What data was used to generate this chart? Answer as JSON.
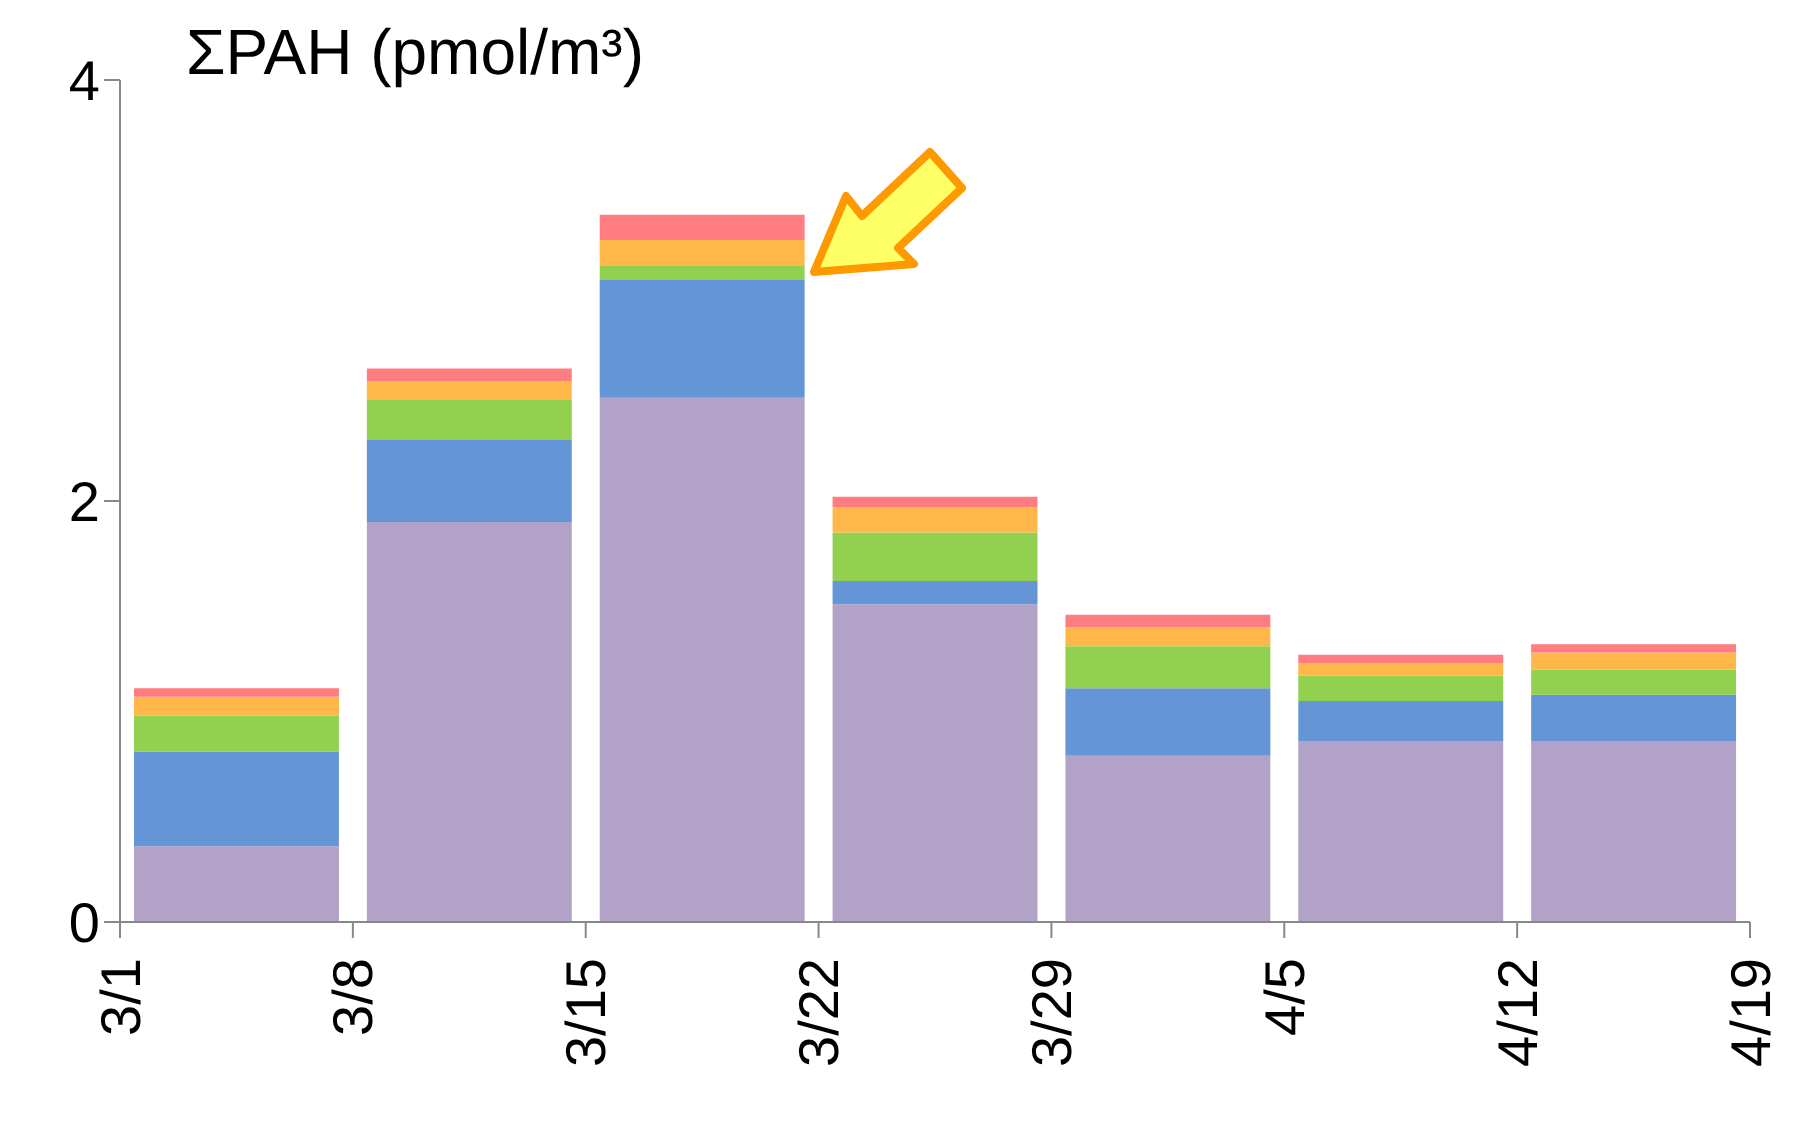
{
  "chart_data": {
    "type": "bar",
    "title": "ΣPAH (pmol/m³)",
    "stacked": true,
    "x": [
      "--03-04T12:00",
      "--03-11T12:00",
      "--03-18T12:00",
      "--03-25T12:00",
      "--04-01T12:00",
      "--04-08T12:00",
      "--04-15T12:00"
    ],
    "xlim": [
      "--03-01",
      "--04-19"
    ],
    "xticks": [
      {
        "value": "--03-01",
        "label": "3/1"
      },
      {
        "value": "--03-08",
        "label": "3/8"
      },
      {
        "value": "--03-15",
        "label": "3/15"
      },
      {
        "value": "--03-22",
        "label": "3/22"
      },
      {
        "value": "--03-29",
        "label": "3/29"
      },
      {
        "value": "--04-05",
        "label": "4/5"
      },
      {
        "value": "--04-12",
        "label": "4/12"
      },
      {
        "value": "--04-19",
        "label": "4/19"
      }
    ],
    "ylim": [
      0,
      4
    ],
    "yticks": [
      0,
      2,
      4
    ],
    "series": [
      {
        "color": "#b3a2c7",
        "values": [
          0.36,
          1.9,
          2.49,
          1.51,
          0.79,
          0.86,
          0.86
        ]
      },
      {
        "color": "#6495d6",
        "values": [
          0.45,
          0.39,
          0.56,
          0.11,
          0.32,
          0.19,
          0.22
        ]
      },
      {
        "color": "#92d050",
        "values": [
          0.17,
          0.19,
          0.07,
          0.23,
          0.2,
          0.12,
          0.12
        ]
      },
      {
        "color": "#ffb74a",
        "values": [
          0.09,
          0.09,
          0.12,
          0.12,
          0.09,
          0.06,
          0.08
        ]
      },
      {
        "color": "#ff7c80",
        "values": [
          0.04,
          0.06,
          0.12,
          0.05,
          0.06,
          0.04,
          0.04
        ]
      }
    ]
  }
}
